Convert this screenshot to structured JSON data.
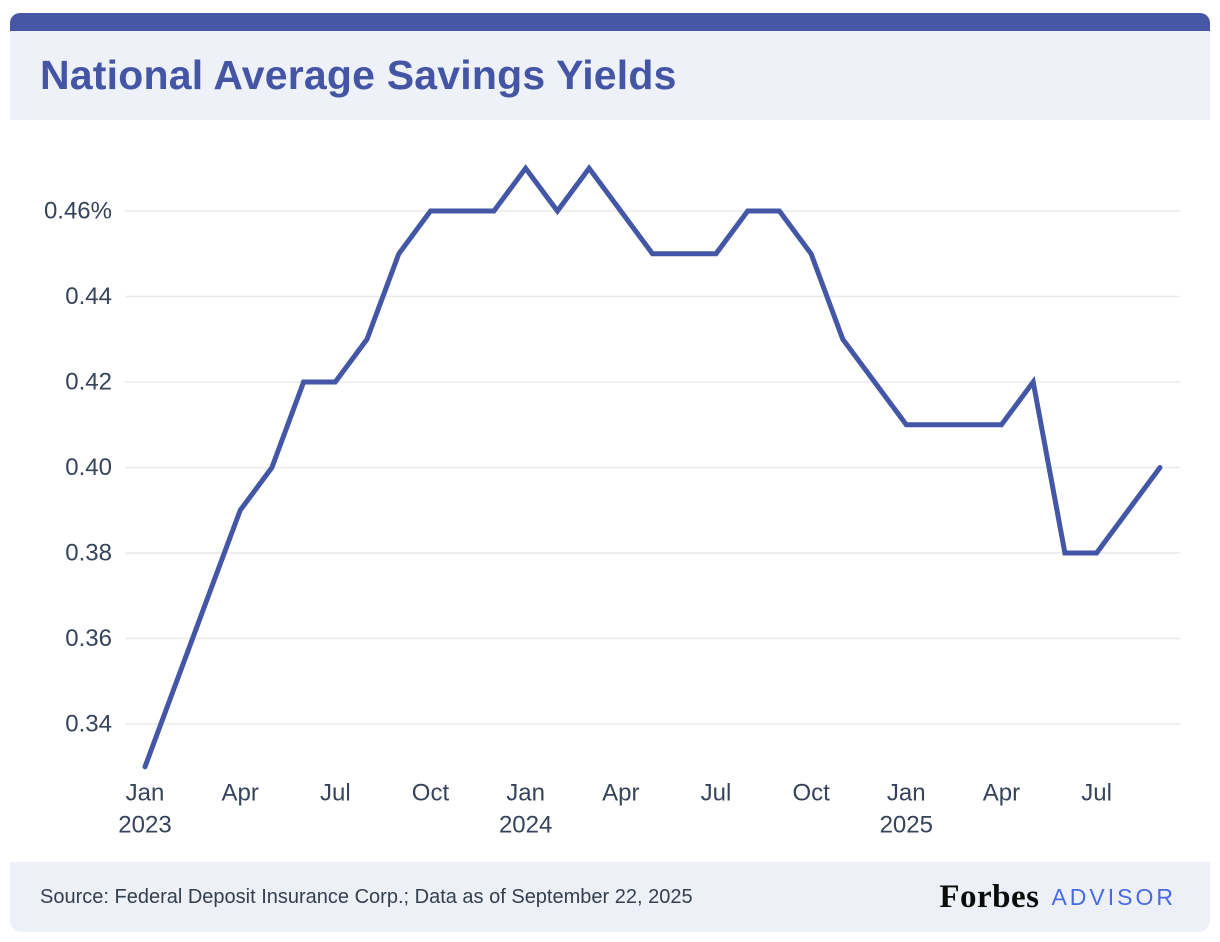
{
  "header": {
    "title": "National Average Savings Yields"
  },
  "footer": {
    "source": "Source: Federal Deposit Insurance Corp.; Data as of September 22, 2025",
    "brand": {
      "name": "Forbes",
      "suffix": "ADVISOR"
    }
  },
  "colors": {
    "top_bar": "#4657A8",
    "title_text": "#4455A5",
    "panel_bg": "#EEF1F8",
    "footer_bg": "#EDF0F7",
    "line": "#4456A6",
    "grid": "#E9EAED",
    "axis_text": "#36435A",
    "footer_text": "#333F4F",
    "forbes_black": "#0B0B0B",
    "advisor_blue": "#4A6AE4"
  },
  "chart_data": {
    "type": "line",
    "title": "National Average Savings Yields",
    "series_name": "National average savings yield",
    "unit": "%",
    "x": [
      "Jan 2023",
      "Feb 2023",
      "Mar 2023",
      "Apr 2023",
      "May 2023",
      "Jun 2023",
      "Jul 2023",
      "Aug 2023",
      "Sep 2023",
      "Oct 2023",
      "Nov 2023",
      "Dec 2023",
      "Jan 2024",
      "Feb 2024",
      "Mar 2024",
      "Apr 2024",
      "May 2024",
      "Jun 2024",
      "Jul 2024",
      "Aug 2024",
      "Sep 2024",
      "Oct 2024",
      "Nov 2024",
      "Dec 2024",
      "Jan 2025",
      "Feb 2025",
      "Mar 2025",
      "Apr 2025",
      "May 2025",
      "Jun 2025",
      "Jul 2025",
      "Aug 2025",
      "Sep 2025"
    ],
    "values": [
      0.33,
      0.35,
      0.37,
      0.39,
      0.4,
      0.42,
      0.42,
      0.43,
      0.45,
      0.46,
      0.46,
      0.46,
      0.47,
      0.46,
      0.47,
      0.46,
      0.45,
      0.45,
      0.45,
      0.46,
      0.46,
      0.45,
      0.43,
      0.42,
      0.41,
      0.41,
      0.41,
      0.41,
      0.42,
      0.38,
      0.38,
      0.39,
      0.4
    ],
    "ylim": [
      0.33,
      0.472
    ],
    "yticks": [
      0.46,
      0.44,
      0.42,
      0.4,
      0.38,
      0.36,
      0.34
    ],
    "ytick_labels": [
      "0.46%",
      "0.44",
      "0.42",
      "0.40",
      "0.38",
      "0.36",
      "0.34"
    ],
    "xticks": [
      {
        "index": 0,
        "label": "Jan",
        "year": "2023"
      },
      {
        "index": 3,
        "label": "Apr"
      },
      {
        "index": 6,
        "label": "Jul"
      },
      {
        "index": 9,
        "label": "Oct"
      },
      {
        "index": 12,
        "label": "Jan",
        "year": "2024"
      },
      {
        "index": 15,
        "label": "Apr"
      },
      {
        "index": 18,
        "label": "Jul"
      },
      {
        "index": 21,
        "label": "Oct"
      },
      {
        "index": 24,
        "label": "Jan",
        "year": "2025"
      },
      {
        "index": 27,
        "label": "Apr"
      },
      {
        "index": 30,
        "label": "Jul"
      }
    ],
    "grid": "horizontal",
    "legend": "none"
  }
}
